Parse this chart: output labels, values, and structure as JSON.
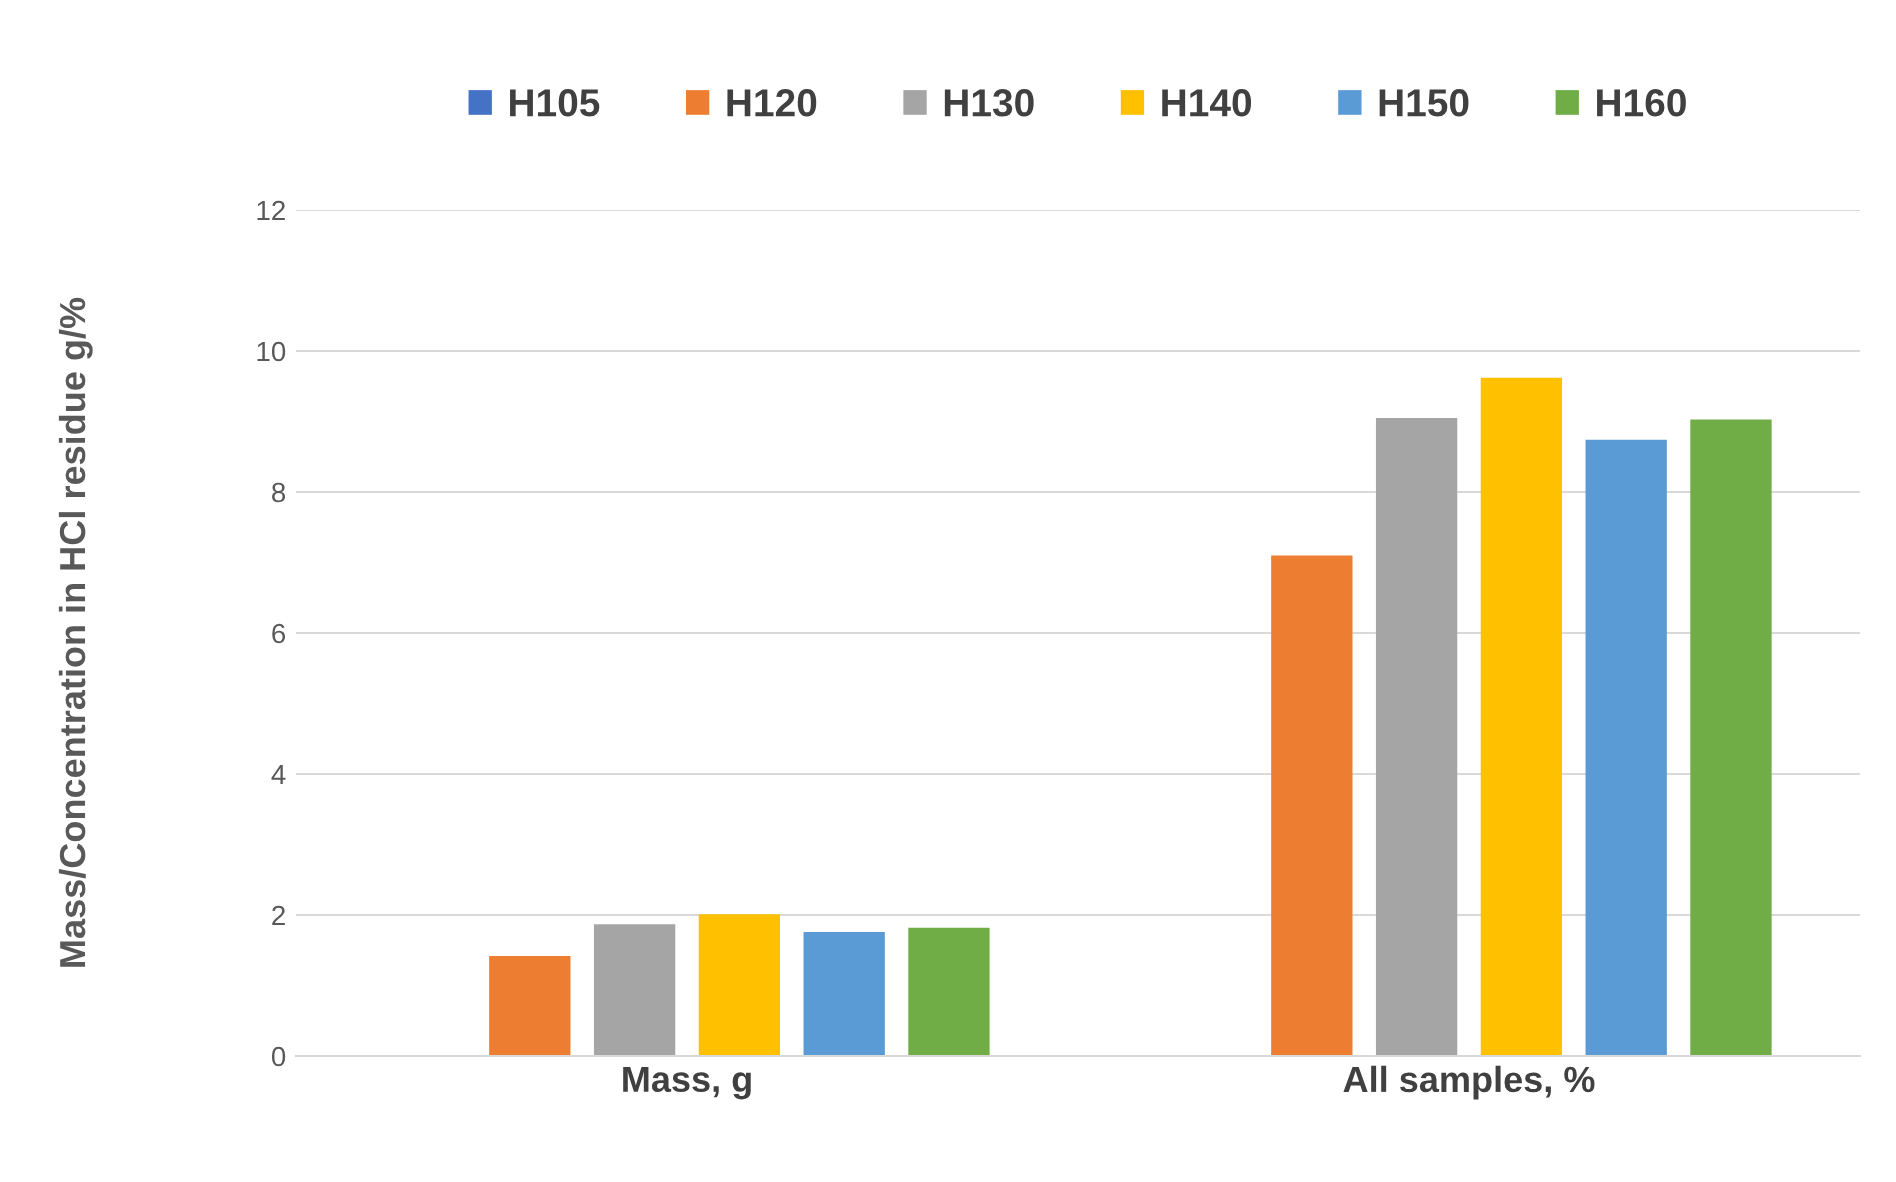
{
  "chart_data": {
    "type": "bar",
    "ylabel": "Mass/Concentration in HCl residue g/%",
    "categories": [
      "Mass, g",
      "All samples, %"
    ],
    "series": [
      {
        "name": "H105",
        "color": "#4472c4",
        "values": [
          0,
          0
        ]
      },
      {
        "name": "H120",
        "color": "#ed7d31",
        "values": [
          1.42,
          7.1
        ]
      },
      {
        "name": "H130",
        "color": "#a5a5a5",
        "values": [
          1.87,
          9.05
        ]
      },
      {
        "name": "H140",
        "color": "#ffc000",
        "values": [
          2.01,
          9.62
        ]
      },
      {
        "name": "H150",
        "color": "#5b9bd5",
        "values": [
          1.76,
          8.74
        ]
      },
      {
        "name": "H160",
        "color": "#70ad47",
        "values": [
          1.82,
          9.03
        ]
      }
    ],
    "ylim": [
      0,
      12
    ],
    "yticks": [
      0,
      2,
      4,
      6,
      8,
      10,
      12
    ],
    "grid": "y",
    "legend": "top"
  }
}
